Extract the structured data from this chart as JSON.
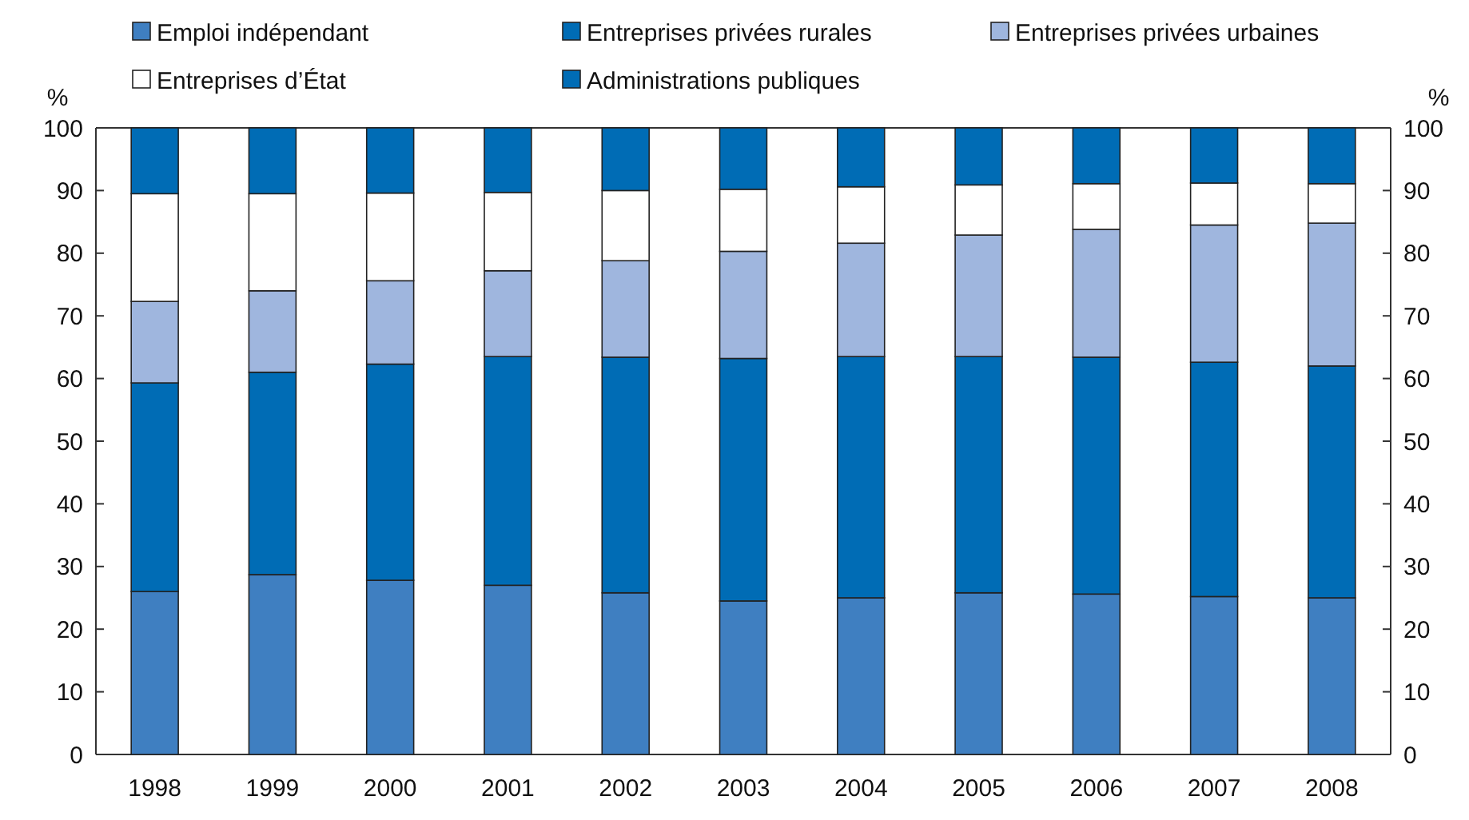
{
  "chart_data": {
    "type": "bar",
    "stacked": true,
    "ylabel": "%",
    "y2label": "%",
    "categories": [
      "1998",
      "1999",
      "2000",
      "2001",
      "2002",
      "2003",
      "2004",
      "2005",
      "2006",
      "2007",
      "2008"
    ],
    "series": [
      {
        "name": "Emploi indépendant",
        "color": "#3f7fc1",
        "values": [
          26,
          28.7,
          27.8,
          27,
          25.8,
          24.5,
          25,
          25.8,
          25.6,
          25.2,
          25
        ]
      },
      {
        "name": "Entreprises privées rurales",
        "color": "#006cb5",
        "values": [
          33.3,
          32.3,
          34.5,
          36.5,
          37.6,
          38.7,
          38.5,
          37.7,
          37.8,
          37.4,
          37
        ]
      },
      {
        "name": "Entreprises privées urbaines",
        "color": "#9fb6de",
        "values": [
          13,
          13,
          13.3,
          13.7,
          15.4,
          17.1,
          18.1,
          19.4,
          20.4,
          21.9,
          22.8
        ]
      },
      {
        "name": "Entreprises d’État",
        "color": "#ffffff",
        "values": [
          17.2,
          15.5,
          14,
          12.5,
          11.2,
          9.9,
          9,
          8,
          7.3,
          6.7,
          6.3
        ]
      },
      {
        "name": "Administrations publiques",
        "color": "#006cb5",
        "values": [
          10.5,
          10.5,
          10.4,
          10.3,
          10,
          9.8,
          9.4,
          9.1,
          8.9,
          8.8,
          8.9
        ]
      }
    ],
    "ylim": [
      0,
      100
    ],
    "yticks": [
      0,
      10,
      20,
      30,
      40,
      50,
      60,
      70,
      80,
      90,
      100
    ],
    "y2lim": [
      0,
      100
    ],
    "y2ticks": [
      0,
      10,
      20,
      30,
      40,
      50,
      60,
      70,
      80,
      90,
      100
    ],
    "grid": false,
    "legend": "top"
  }
}
